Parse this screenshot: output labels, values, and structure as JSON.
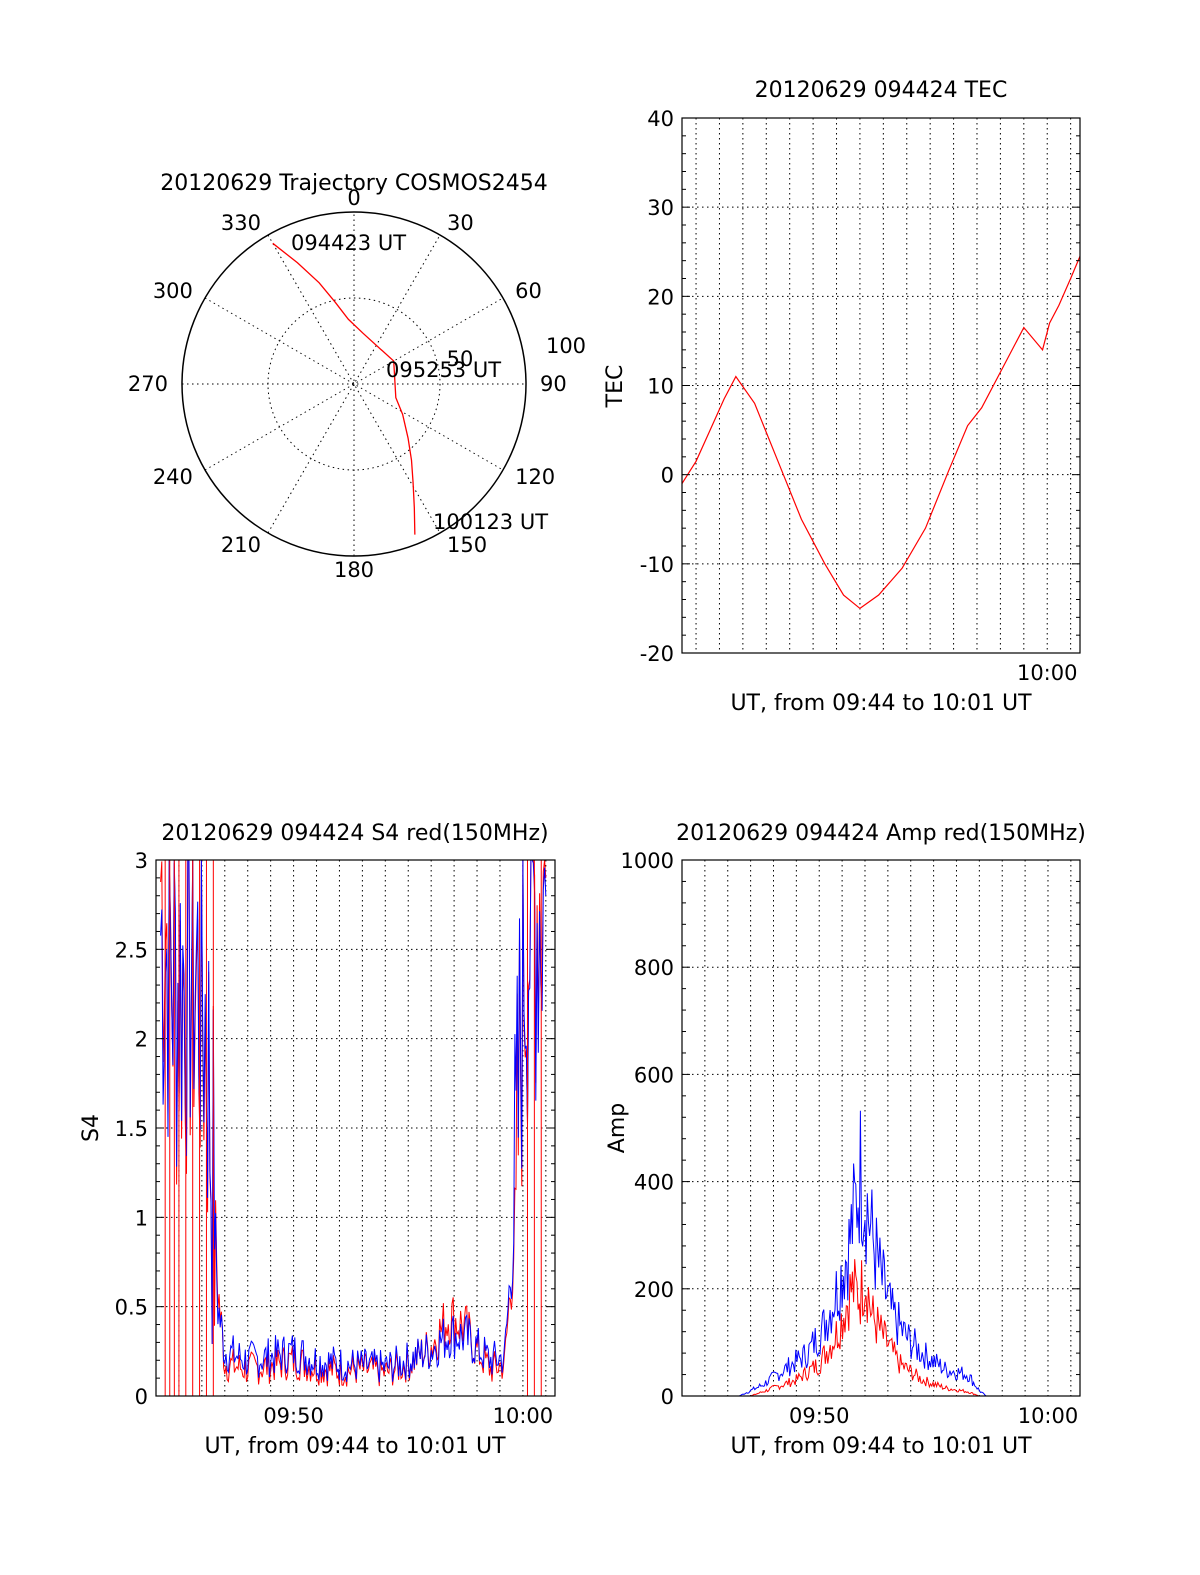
{
  "chart_data": [
    {
      "type": "polar",
      "title": "20120629 Trajectory COSMOS2454",
      "angle_labels": [
        "0",
        "30",
        "60",
        "90",
        "120",
        "150",
        "180",
        "210",
        "240",
        "270",
        "300",
        "330"
      ],
      "radial_labels": [
        "50",
        "100"
      ],
      "annotations": [
        {
          "text": "094423 UT",
          "azimuth_deg": 330,
          "elevation_deg": 5
        },
        {
          "text": "095253 UT",
          "azimuth_deg": 110,
          "elevation_deg": 67
        },
        {
          "text": "100123 UT",
          "azimuth_deg": 158,
          "elevation_deg": 5
        }
      ],
      "series": [
        {
          "color": "#ff0000",
          "azimuth_deg": [
            330,
            335,
            341,
            347,
            355,
            10,
            60,
            108,
            122,
            135,
            143,
            149,
            154,
            158
          ],
          "elevation_deg": [
            5,
            20,
            34,
            46,
            56,
            63,
            66,
            67,
            60,
            50,
            40,
            30,
            18,
            5
          ]
        }
      ]
    },
    {
      "type": "line",
      "title": "20120629 094424 TEC",
      "xlabel": "UT, from 09:44 to 10:01 UT",
      "ylabel": "TEC",
      "xlim_minutes": [
        584.4,
        601.4
      ],
      "ylim": [
        -20,
        40
      ],
      "yticks": [
        "-20",
        "-10",
        "0",
        "10",
        "20",
        "30",
        "40"
      ],
      "xticks": [
        {
          "minute": 600,
          "label": "10:00"
        }
      ],
      "grid": true,
      "series": [
        {
          "color": "#ff0000",
          "x_minutes": [
            584.4,
            585.0,
            585.6,
            586.2,
            586.7,
            587.5,
            588.5,
            589.5,
            590.5,
            591.3,
            592.0,
            592.8,
            593.8,
            594.8,
            595.8,
            596.6,
            597.2,
            598.0,
            599.0,
            599.8,
            600.1,
            600.5,
            601.0,
            601.4
          ],
          "y": [
            -1,
            1.5,
            5.0,
            8.5,
            11.0,
            8.0,
            1.5,
            -5.0,
            -10.0,
            -13.5,
            -15.0,
            -13.5,
            -10.5,
            -6.0,
            0.5,
            5.5,
            7.5,
            11.5,
            16.5,
            14.0,
            17.0,
            19.0,
            22.0,
            24.5
          ]
        }
      ]
    },
    {
      "type": "line",
      "title": "20120629 094424 S4 red(150MHz)",
      "xlabel": "UT, from 09:44 to 10:01 UT",
      "ylabel": "S4",
      "xlim_minutes": [
        584.0,
        601.4
      ],
      "ylim": [
        0,
        3
      ],
      "yticks": [
        "0",
        "0.5",
        "1",
        "1.5",
        "2",
        "2.5",
        "3"
      ],
      "xticks": [
        {
          "minute": 590,
          "label": "09:50"
        },
        {
          "minute": 600,
          "label": "10:00"
        }
      ],
      "grid": true,
      "series": [
        {
          "color": "#ff0000",
          "x_minutes": [
            584.2,
            584.9,
            585.6,
            586.2,
            586.7,
            587.0,
            588.0,
            589.0,
            590.0,
            591.0,
            592.0,
            593.0,
            594.0,
            595.0,
            596.0,
            596.8,
            597.5,
            598.0,
            598.6,
            599.2,
            599.7,
            600.0,
            600.4,
            601.0
          ],
          "y": [
            2.9,
            2.2,
            2.4,
            2.0,
            0.6,
            0.18,
            0.15,
            0.17,
            0.2,
            0.16,
            0.14,
            0.15,
            0.13,
            0.18,
            0.28,
            0.45,
            0.38,
            0.25,
            0.15,
            0.18,
            1.0,
            2.4,
            2.8,
            2.9
          ]
        },
        {
          "color": "#0000ff",
          "x_minutes": [
            584.2,
            584.9,
            585.6,
            586.2,
            586.7,
            587.0,
            588.0,
            589.0,
            590.0,
            591.0,
            592.0,
            593.0,
            594.0,
            595.0,
            596.0,
            596.8,
            597.5,
            598.0,
            598.6,
            599.2,
            599.7,
            600.0,
            600.4,
            601.0
          ],
          "y": [
            2.6,
            2.3,
            2.5,
            2.1,
            0.5,
            0.25,
            0.2,
            0.22,
            0.25,
            0.2,
            0.18,
            0.17,
            0.16,
            0.2,
            0.26,
            0.35,
            0.33,
            0.27,
            0.2,
            0.22,
            1.1,
            2.5,
            2.7,
            2.8
          ]
        }
      ]
    },
    {
      "type": "line",
      "title": "20120629 094424 Amp red(150MHz)",
      "xlabel": "UT, from 09:44 to 10:01 UT",
      "ylabel": "Amp",
      "xlim_minutes": [
        584.0,
        601.4
      ],
      "ylim": [
        0,
        1000
      ],
      "yticks": [
        "0",
        "200",
        "400",
        "600",
        "800",
        "1000"
      ],
      "xticks": [
        {
          "minute": 590,
          "label": "09:50"
        },
        {
          "minute": 600,
          "label": "10:00"
        }
      ],
      "grid": true,
      "series": [
        {
          "color": "#0000ff",
          "x_minutes": [
            584.0,
            586.5,
            587.5,
            588.5,
            589.5,
            590.2,
            590.8,
            591.3,
            591.6,
            591.8,
            592.0,
            592.3,
            592.7,
            593.2,
            593.8,
            594.5,
            595.5,
            596.5,
            597.0,
            597.3,
            601.4
          ],
          "y": [
            0,
            0,
            20,
            50,
            80,
            130,
            200,
            280,
            360,
            420,
            380,
            300,
            220,
            150,
            110,
            80,
            50,
            40,
            10,
            0,
            0
          ]
        },
        {
          "color": "#ff0000",
          "x_minutes": [
            584.0,
            587.0,
            588.0,
            589.0,
            590.0,
            590.8,
            591.4,
            591.8,
            592.0,
            592.3,
            592.8,
            593.5,
            594.5,
            595.5,
            596.5,
            597.0,
            601.4
          ],
          "y": [
            0,
            0,
            15,
            30,
            60,
            120,
            200,
            190,
            230,
            150,
            110,
            60,
            30,
            15,
            8,
            0,
            0
          ]
        }
      ]
    }
  ]
}
